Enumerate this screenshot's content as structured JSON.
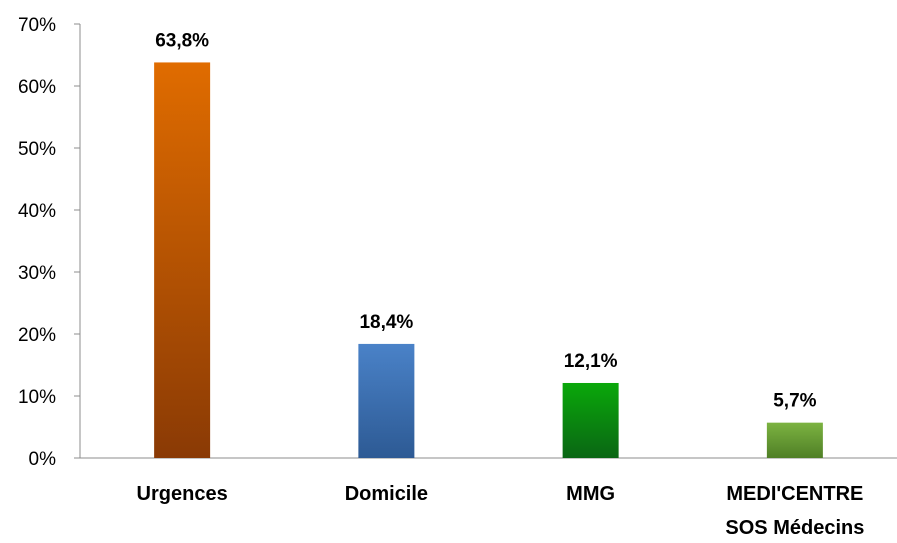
{
  "chart_data": {
    "type": "bar",
    "categories": [
      [
        "Urgences"
      ],
      [
        "Domicile"
      ],
      [
        "MMG"
      ],
      [
        "MEDI'CENTRE",
        "SOS Médecins"
      ]
    ],
    "values": [
      63.8,
      18.4,
      12.1,
      5.7
    ],
    "data_labels": [
      "63,8%",
      "18,4%",
      "12,1%",
      "5,7%"
    ],
    "y_ticks": [
      "0%",
      "10%",
      "20%",
      "30%",
      "40%",
      "50%",
      "60%",
      "70%"
    ],
    "ylim": [
      0,
      70
    ],
    "grid": false,
    "legend": "none",
    "bar_colors": [
      {
        "top": "#e06c00",
        "bottom": "#8a3a05"
      },
      {
        "top": "#4a82c8",
        "bottom": "#2d5a94"
      },
      {
        "top": "#0aa80a",
        "bottom": "#0a6614"
      },
      {
        "top": "#7cb341",
        "bottom": "#4f7f26"
      }
    ]
  }
}
